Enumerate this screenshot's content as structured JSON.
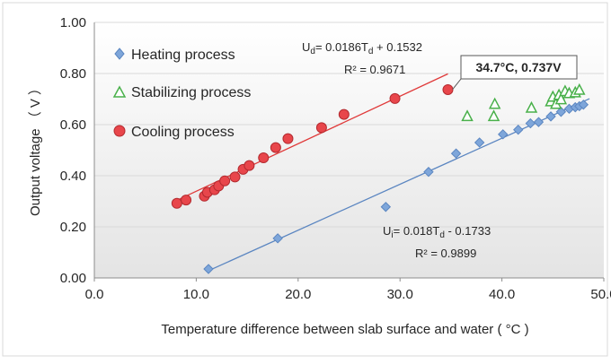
{
  "chart_data": {
    "type": "scatter",
    "xlabel": "Temperature difference between slab surface and water ( °C )",
    "ylabel": "Output voltage （ V ）",
    "xlim": [
      0,
      50
    ],
    "ylim": [
      0,
      1
    ],
    "x_ticks": [
      "0.0",
      "10.0",
      "20.0",
      "30.0",
      "40.0",
      "50.0"
    ],
    "y_ticks": [
      "0.00",
      "0.20",
      "0.40",
      "0.60",
      "0.80",
      "1.00"
    ],
    "grid": "horizontal",
    "legend_position": "top-left",
    "series": [
      {
        "name": "Heating process",
        "marker": "diamond",
        "color": "#7ea6da",
        "stroke": "#5b86c1",
        "points": [
          [
            11.2,
            0.035
          ],
          [
            18.0,
            0.155
          ],
          [
            28.6,
            0.278
          ],
          [
            32.8,
            0.415
          ],
          [
            35.5,
            0.487
          ],
          [
            37.8,
            0.53
          ],
          [
            40.1,
            0.562
          ],
          [
            41.6,
            0.58
          ],
          [
            42.8,
            0.605
          ],
          [
            43.6,
            0.61
          ],
          [
            44.8,
            0.632
          ],
          [
            45.8,
            0.65
          ],
          [
            46.6,
            0.662
          ],
          [
            47.2,
            0.668
          ],
          [
            47.6,
            0.672
          ],
          [
            48.0,
            0.678
          ]
        ]
      },
      {
        "name": "Stabilizing process",
        "marker": "triangle",
        "color": "#ffffff",
        "stroke": "#49b04a",
        "points": [
          [
            36.6,
            0.632
          ],
          [
            39.2,
            0.632
          ],
          [
            39.3,
            0.68
          ],
          [
            42.9,
            0.665
          ],
          [
            44.8,
            0.69
          ],
          [
            45.0,
            0.708
          ],
          [
            45.3,
            0.68
          ],
          [
            45.6,
            0.715
          ],
          [
            45.8,
            0.698
          ],
          [
            46.2,
            0.73
          ],
          [
            46.6,
            0.722
          ],
          [
            47.2,
            0.725
          ],
          [
            47.6,
            0.735
          ]
        ]
      },
      {
        "name": "Cooling process",
        "marker": "circle",
        "color": "#e8464b",
        "stroke": "#b32a2f",
        "points": [
          [
            8.1,
            0.292
          ],
          [
            9.0,
            0.305
          ],
          [
            10.8,
            0.32
          ],
          [
            11.1,
            0.335
          ],
          [
            11.8,
            0.345
          ],
          [
            12.2,
            0.36
          ],
          [
            12.8,
            0.38
          ],
          [
            13.8,
            0.395
          ],
          [
            14.6,
            0.425
          ],
          [
            15.2,
            0.44
          ],
          [
            16.6,
            0.47
          ],
          [
            17.8,
            0.51
          ],
          [
            19.0,
            0.545
          ],
          [
            22.3,
            0.588
          ],
          [
            24.5,
            0.64
          ],
          [
            29.5,
            0.702
          ],
          [
            34.7,
            0.737
          ]
        ]
      }
    ],
    "trendlines": [
      {
        "series": "Cooling process",
        "color": "#e03a3a",
        "slope": 0.0186,
        "intercept": 0.1532,
        "x_range": [
          8.0,
          34.7
        ],
        "equation_main": "U",
        "equation_sub": "d",
        "equation_mid": "= 0.0186T",
        "equation_sub2": "d",
        "equation_end": " + 0.1532",
        "r2": "R² = 0.9671"
      },
      {
        "series": "Heating process",
        "color": "#5b86c1",
        "slope": 0.018,
        "intercept": -0.1733,
        "x_range": [
          11.2,
          48.6
        ],
        "equation_main": "U",
        "equation_sub": "i",
        "equation_mid": "= 0.018T",
        "equation_sub2": "d",
        "equation_end": " - 0.1733",
        "r2": "R² = 0.9899"
      }
    ],
    "annotation": {
      "text": "34.7°C, 0.737V",
      "point": [
        34.7,
        0.737
      ]
    }
  }
}
